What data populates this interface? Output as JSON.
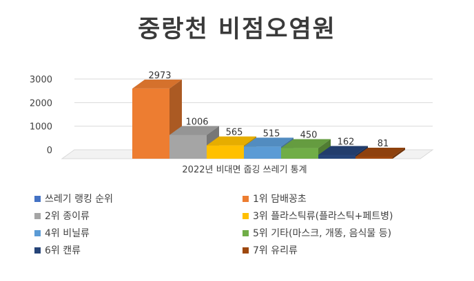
{
  "chart_data": {
    "type": "bar",
    "title": "중랑천 비점오염원",
    "xlabel": "2022년 비대면 줍깅 쓰레기 통계",
    "ylabel": "",
    "ylim": [
      0,
      3000
    ],
    "yticks": [
      0,
      1000,
      2000,
      3000
    ],
    "grid": true,
    "legend_position": "bottom",
    "legend_header": "쓰레기 랭킹 순위",
    "legend_header_color": "#4472c4",
    "series": [
      {
        "name": "1위 담배꽁초",
        "value": 2973,
        "label": "2973",
        "color": "#ed7d31"
      },
      {
        "name": "2위 종이류",
        "value": 1006,
        "label": "1006",
        "color": "#a5a5a5"
      },
      {
        "name": "3위 플라스틱류(플라스틱+페트병)",
        "value": 565,
        "label": "565",
        "color": "#ffc000"
      },
      {
        "name": "4위 비닐류",
        "value": 515,
        "label": "515",
        "color": "#5b9bd5"
      },
      {
        "name": "5위 기타(마스크, 개똥, 음식물 등)",
        "value": 450,
        "label": "450",
        "color": "#70ad47"
      },
      {
        "name": "6위 캔류",
        "value": 162,
        "label": "162",
        "color": "#264478"
      },
      {
        "name": "7위 유리류",
        "value": 81,
        "label": "81",
        "color": "#9e480e"
      }
    ]
  }
}
